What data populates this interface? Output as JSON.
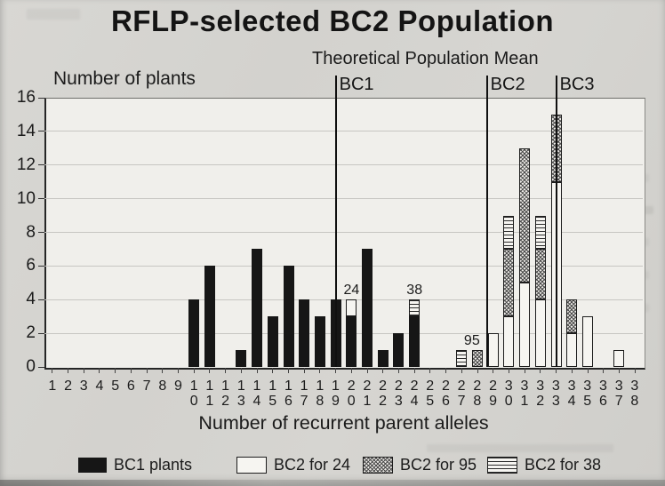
{
  "chart_data": {
    "type": "bar",
    "stacked": true,
    "title": "RFLP-selected BC2 Population",
    "ylabel": "Number of plants",
    "xlabel": "Number of recurrent parent alleles",
    "ylim": [
      0,
      16
    ],
    "ytick_labels": [
      0,
      2,
      4,
      6,
      8,
      10,
      12,
      14,
      16
    ],
    "grid": true,
    "categories": [
      1,
      2,
      3,
      4,
      5,
      6,
      7,
      8,
      9,
      10,
      11,
      12,
      13,
      14,
      15,
      16,
      17,
      18,
      19,
      20,
      21,
      22,
      23,
      24,
      25,
      26,
      27,
      28,
      29,
      30,
      31,
      32,
      33,
      34,
      35,
      36,
      37,
      38
    ],
    "series": [
      {
        "name": "BC1 plants",
        "pattern": "solid-black",
        "values": [
          0,
          0,
          0,
          0,
          0,
          0,
          0,
          0,
          0,
          4,
          6,
          0,
          1,
          7,
          3,
          6,
          4,
          3,
          4,
          3,
          7,
          1,
          2,
          3,
          0,
          0,
          0,
          0,
          0,
          0,
          0,
          0,
          0,
          0,
          0,
          0,
          0,
          0
        ]
      },
      {
        "name": "BC2 for 24",
        "pattern": "white-open",
        "values": [
          0,
          0,
          0,
          0,
          0,
          0,
          0,
          0,
          0,
          0,
          0,
          0,
          0,
          0,
          0,
          0,
          0,
          0,
          0,
          1,
          0,
          0,
          0,
          0,
          0,
          0,
          0,
          0,
          2,
          3,
          5,
          4,
          11,
          2,
          3,
          0,
          1,
          0
        ]
      },
      {
        "name": "BC2 for 95",
        "pattern": "diagonal-crosshatch",
        "values": [
          0,
          0,
          0,
          0,
          0,
          0,
          0,
          0,
          0,
          0,
          0,
          0,
          0,
          0,
          0,
          0,
          0,
          0,
          0,
          0,
          0,
          0,
          0,
          0,
          0,
          0,
          0,
          1,
          0,
          4,
          8,
          3,
          4,
          2,
          0,
          0,
          0,
          0
        ]
      },
      {
        "name": "BC2 for 38",
        "pattern": "horizontal-lines",
        "values": [
          0,
          0,
          0,
          0,
          0,
          0,
          0,
          0,
          0,
          0,
          0,
          0,
          0,
          0,
          0,
          0,
          0,
          0,
          0,
          0,
          0,
          0,
          0,
          1,
          0,
          0,
          1,
          0,
          0,
          2,
          0,
          2,
          0,
          0,
          0,
          0,
          0,
          0
        ]
      }
    ],
    "bar_labels": [
      {
        "text": "24",
        "x_category": 20,
        "above_value": 4
      },
      {
        "text": "38",
        "x_category": 24,
        "above_value": 4
      },
      {
        "text": "95",
        "x_category": 27.65,
        "above_value": 1
      }
    ],
    "mean_lines": {
      "title": "Theoretical Population Mean",
      "lines": [
        {
          "label": "BC1",
          "position": 19
        },
        {
          "label": "BC2",
          "position": 28.6
        },
        {
          "label": "BC3",
          "position": 33
        }
      ]
    },
    "legend": {
      "position": "bottom",
      "entries": [
        "BC1 plants",
        "BC2 for 24",
        "BC2 for 95",
        "BC2 for 38"
      ]
    }
  },
  "colors": {
    "bar_black": "#161616",
    "bar_white": "#f6f5f1",
    "hatch_line": "#4c4c4c",
    "paper": "#d4d3cf",
    "plot_background": "#f0efeb",
    "gridline": "#c7c6c2",
    "axis": "#262626",
    "text": "#1b1b1b"
  }
}
